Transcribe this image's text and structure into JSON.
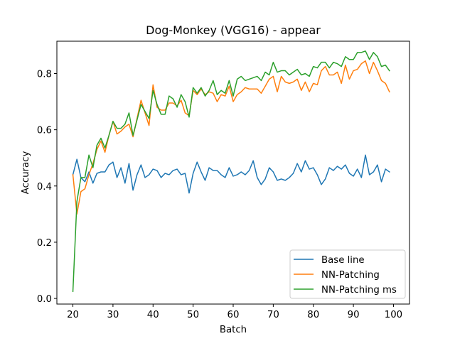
{
  "chart_data": {
    "type": "line",
    "title": "Dog-Monkey (VGG16) - appear",
    "xlabel": "Batch",
    "ylabel": "Accuracy",
    "xlim": [
      16,
      104
    ],
    "ylim": [
      -0.02,
      0.915
    ],
    "xticks": [
      20,
      30,
      40,
      50,
      60,
      70,
      80,
      90,
      100
    ],
    "yticks": [
      0.0,
      0.2,
      0.4,
      0.6,
      0.8
    ],
    "ytick_labels": [
      "0.0",
      "0.2",
      "0.4",
      "0.6",
      "0.8"
    ],
    "grid": false,
    "legend_position": "lower-right",
    "x": [
      20,
      21,
      22,
      23,
      24,
      25,
      26,
      27,
      28,
      29,
      30,
      31,
      32,
      33,
      34,
      35,
      36,
      37,
      38,
      39,
      40,
      41,
      42,
      43,
      44,
      45,
      46,
      47,
      48,
      49,
      50,
      51,
      52,
      53,
      54,
      55,
      56,
      57,
      58,
      59,
      60,
      61,
      62,
      63,
      64,
      65,
      66,
      67,
      68,
      69,
      70,
      71,
      72,
      73,
      74,
      75,
      76,
      77,
      78,
      79,
      80,
      81,
      82,
      83,
      84,
      85,
      86,
      87,
      88,
      89,
      90,
      91,
      92,
      93,
      94,
      95,
      96,
      97,
      98,
      99
    ],
    "series": [
      {
        "name": "Base line",
        "color": "#1f77b4",
        "values": [
          0.44,
          0.495,
          0.43,
          0.415,
          0.45,
          0.41,
          0.445,
          0.45,
          0.45,
          0.475,
          0.485,
          0.43,
          0.465,
          0.41,
          0.48,
          0.385,
          0.44,
          0.475,
          0.43,
          0.44,
          0.46,
          0.455,
          0.43,
          0.445,
          0.44,
          0.455,
          0.46,
          0.44,
          0.445,
          0.375,
          0.445,
          0.485,
          0.45,
          0.42,
          0.465,
          0.455,
          0.455,
          0.44,
          0.43,
          0.465,
          0.435,
          0.44,
          0.45,
          0.44,
          0.455,
          0.49,
          0.43,
          0.405,
          0.425,
          0.465,
          0.45,
          0.42,
          0.425,
          0.42,
          0.43,
          0.445,
          0.48,
          0.45,
          0.49,
          0.46,
          0.465,
          0.44,
          0.405,
          0.425,
          0.465,
          0.455,
          0.47,
          0.46,
          0.475,
          0.445,
          0.435,
          0.46,
          0.43,
          0.51,
          0.44,
          0.45,
          0.475,
          0.415,
          0.46,
          0.45
        ]
      },
      {
        "name": "NN-Patching",
        "color": "#ff7f0e",
        "values": [
          0.44,
          0.3,
          0.38,
          0.39,
          0.44,
          0.48,
          0.53,
          0.56,
          0.52,
          0.58,
          0.63,
          0.585,
          0.595,
          0.61,
          0.62,
          0.575,
          0.64,
          0.705,
          0.66,
          0.615,
          0.76,
          0.68,
          0.67,
          0.67,
          0.695,
          0.695,
          0.685,
          0.705,
          0.66,
          0.65,
          0.74,
          0.725,
          0.745,
          0.725,
          0.735,
          0.73,
          0.7,
          0.725,
          0.72,
          0.755,
          0.7,
          0.725,
          0.735,
          0.75,
          0.745,
          0.745,
          0.745,
          0.73,
          0.755,
          0.78,
          0.79,
          0.735,
          0.79,
          0.77,
          0.765,
          0.77,
          0.78,
          0.74,
          0.77,
          0.735,
          0.765,
          0.76,
          0.81,
          0.825,
          0.795,
          0.795,
          0.805,
          0.765,
          0.83,
          0.78,
          0.81,
          0.815,
          0.835,
          0.845,
          0.8,
          0.84,
          0.81,
          0.775,
          0.765,
          0.735
        ]
      },
      {
        "name": "NN-Patching ms",
        "color": "#2ca02c",
        "values": [
          0.025,
          0.345,
          0.43,
          0.43,
          0.51,
          0.465,
          0.545,
          0.57,
          0.535,
          0.58,
          0.63,
          0.605,
          0.605,
          0.62,
          0.66,
          0.58,
          0.635,
          0.69,
          0.665,
          0.64,
          0.74,
          0.69,
          0.655,
          0.655,
          0.72,
          0.71,
          0.68,
          0.725,
          0.7,
          0.645,
          0.75,
          0.73,
          0.75,
          0.72,
          0.74,
          0.775,
          0.725,
          0.74,
          0.73,
          0.775,
          0.72,
          0.78,
          0.79,
          0.775,
          0.78,
          0.785,
          0.79,
          0.775,
          0.805,
          0.795,
          0.84,
          0.805,
          0.81,
          0.81,
          0.795,
          0.805,
          0.815,
          0.795,
          0.8,
          0.79,
          0.825,
          0.82,
          0.84,
          0.84,
          0.82,
          0.84,
          0.835,
          0.825,
          0.86,
          0.85,
          0.85,
          0.875,
          0.875,
          0.88,
          0.85,
          0.875,
          0.86,
          0.825,
          0.83,
          0.81
        ]
      }
    ]
  }
}
